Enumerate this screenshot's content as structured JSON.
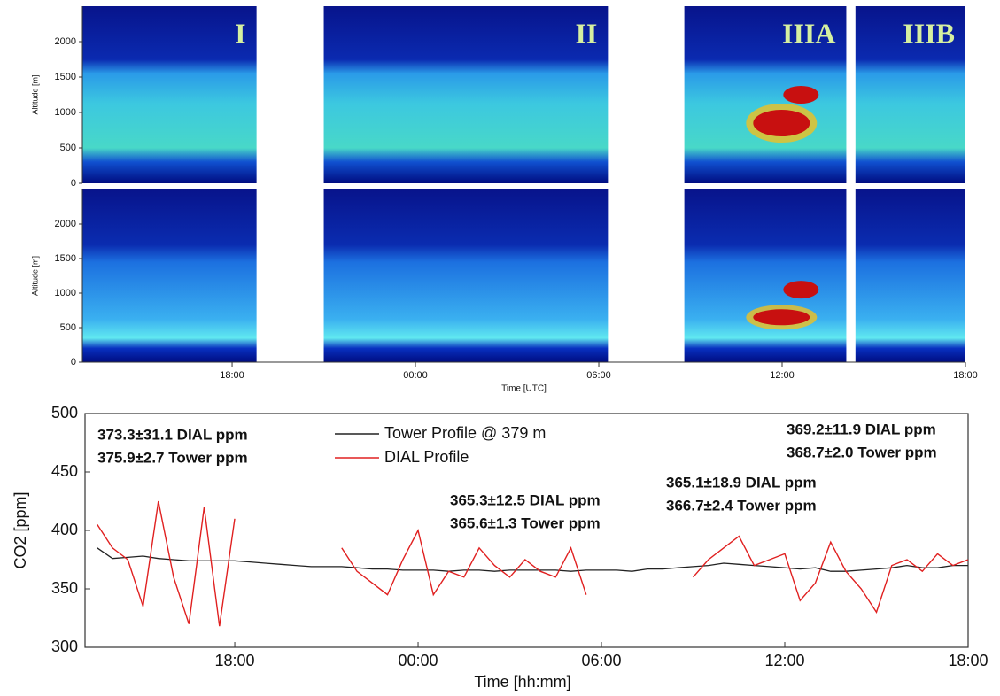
{
  "chart_data": [
    {
      "type": "heatmap",
      "xlabel": "Time [UTC]",
      "ylabel": "Altitude [m]",
      "xlim": [
        13.1,
        42
      ],
      "ylim": [
        0,
        2500
      ],
      "yticks": [
        0,
        500,
        1000,
        1500,
        2000
      ],
      "xticks": [
        {
          "value": 18,
          "label": "18:00"
        },
        {
          "value": 24,
          "label": "00:00"
        },
        {
          "value": 30,
          "label": "06:00"
        },
        {
          "value": 36,
          "label": "12:00"
        },
        {
          "value": 42,
          "label": "18:00"
        }
      ],
      "panels": [
        {
          "label": "I",
          "x": [
            13.1,
            18.8
          ]
        },
        {
          "label": "II",
          "x": [
            21.0,
            30.3
          ]
        },
        {
          "label": "IIIA",
          "x": [
            32.8,
            38.1
          ]
        },
        {
          "label": "IIIB",
          "x": [
            38.4,
            42
          ]
        }
      ]
    },
    {
      "type": "line",
      "xlabel": "Time [hh:mm]",
      "ylabel": "CO2 [ppm]",
      "xlim": [
        13.1,
        42
      ],
      "ylim": [
        300,
        500
      ],
      "yticks": [
        300,
        350,
        400,
        450,
        500
      ],
      "xticks": [
        {
          "value": 18,
          "label": "18:00"
        },
        {
          "value": 24,
          "label": "00:00"
        },
        {
          "value": 30,
          "label": "06:00"
        },
        {
          "value": 36,
          "label": "12:00"
        },
        {
          "value": 42,
          "label": "18:00"
        }
      ],
      "x": [
        13.5,
        14,
        14.5,
        15,
        15.5,
        16,
        16.5,
        17,
        17.5,
        18,
        18.5,
        19,
        19.5,
        20,
        20.5,
        21,
        21.5,
        22,
        22.5,
        23,
        23.5,
        24,
        24.5,
        25,
        25.5,
        26,
        26.5,
        27,
        27.5,
        28,
        28.5,
        29,
        29.5,
        30,
        30.5,
        31,
        31.5,
        32,
        32.5,
        33,
        33.5,
        34,
        34.5,
        35,
        35.5,
        36,
        36.5,
        37,
        37.5,
        38,
        38.5,
        39,
        39.5,
        40,
        40.5,
        41,
        41.5,
        42
      ],
      "series": [
        {
          "name": "Tower Profile @ 379 m",
          "color": "#222222",
          "values": [
            385,
            376,
            377,
            378,
            376,
            375,
            374,
            374,
            374,
            374,
            373,
            372,
            371,
            370,
            369,
            369,
            369,
            368,
            367,
            367,
            366,
            366,
            366,
            365,
            366,
            366,
            365,
            366,
            366,
            366,
            366,
            365,
            366,
            366,
            366,
            365,
            367,
            367,
            368,
            369,
            370,
            372,
            371,
            370,
            369,
            368,
            367,
            368,
            365,
            365,
            366,
            367,
            368,
            370,
            368,
            368,
            370,
            370
          ]
        },
        {
          "name": "DIAL Profile",
          "color": "#e02020",
          "values": [
            405,
            385,
            375,
            335,
            425,
            360,
            320,
            420,
            318,
            410,
            null,
            null,
            null,
            null,
            null,
            null,
            385,
            365,
            355,
            345,
            375,
            400,
            345,
            365,
            360,
            385,
            370,
            360,
            375,
            365,
            360,
            385,
            345,
            null,
            null,
            null,
            null,
            null,
            null,
            360,
            375,
            385,
            395,
            370,
            375,
            380,
            340,
            355,
            390,
            365,
            350,
            330,
            370,
            375,
            365,
            380,
            370,
            375
          ]
        }
      ],
      "annotations": [
        [
          "373.3±31.1 DIAL ppm",
          "375.9±2.7 Tower ppm"
        ],
        [
          "365.3±12.5 DIAL ppm",
          "365.6±1.3 Tower ppm"
        ],
        [
          "365.1±18.9 DIAL ppm",
          "366.7±2.4 Tower ppm"
        ],
        [
          "369.2±11.9 DIAL ppm",
          "368.7±2.0 Tower ppm"
        ]
      ]
    }
  ]
}
